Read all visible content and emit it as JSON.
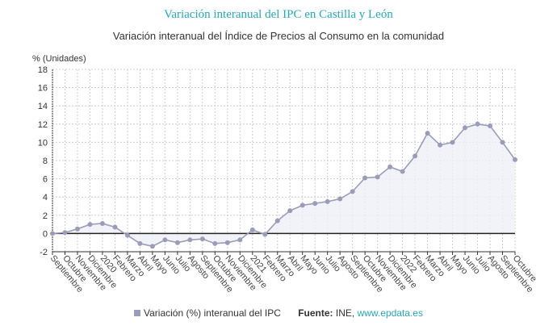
{
  "chart_data": {
    "type": "area",
    "title": "Variación interanual del IPC en Castilla y León",
    "subtitle": "Variación interanual del Índice de Precios al Consumo en la comunidad",
    "ylabel": "% (Unidades)",
    "ylim": [
      -2,
      18
    ],
    "yticks": [
      -2,
      0,
      2,
      4,
      6,
      8,
      10,
      12,
      14,
      16,
      18
    ],
    "grid": true,
    "legend_position": "bottom",
    "categories": [
      "Septiembre",
      "Octubre",
      "Noviembre",
      "Diciembre",
      "2020",
      "Febrero",
      "Marzo",
      "Abril",
      "Mayo",
      "Junio",
      "Julio",
      "Agosto",
      "Septiembre",
      "Octubre",
      "Noviembre",
      "Diciembre",
      "2021",
      "Febrero",
      "Marzo",
      "Abril",
      "Mayo",
      "Junio",
      "Julio",
      "Agosto",
      "Septiembre",
      "Octubre",
      "Noviembre",
      "Diciembre",
      "2022",
      "Febrero",
      "Marzo",
      "Abril",
      "Mayo",
      "Junio",
      "Julio",
      "Agosto",
      "Septiembre",
      "Octubre"
    ],
    "series": [
      {
        "name": "Variación (%) interanual del IPC",
        "color": "#9a9cb8",
        "values": [
          0.0,
          0.1,
          0.5,
          1.0,
          1.1,
          0.7,
          -0.2,
          -1.1,
          -1.4,
          -0.7,
          -1.0,
          -0.7,
          -0.6,
          -1.1,
          -1.0,
          -0.7,
          0.4,
          -0.1,
          1.4,
          2.5,
          3.1,
          3.3,
          3.5,
          3.8,
          4.6,
          6.1,
          6.2,
          7.3,
          6.8,
          8.5,
          11.0,
          9.7,
          10.0,
          11.6,
          12.0,
          11.8,
          10.0,
          8.1
        ]
      }
    ]
  },
  "source": {
    "label": "Fuente:",
    "text": "INE,",
    "link": "www.epdata.es"
  },
  "colors": {
    "title": "#2aa5b5",
    "series": "#9a9cb8"
  }
}
